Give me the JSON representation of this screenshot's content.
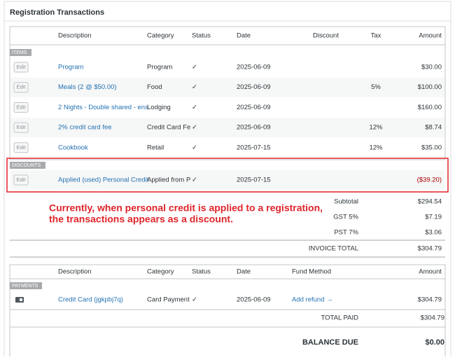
{
  "header": {
    "title": "Registration Transactions"
  },
  "items_table": {
    "columns": {
      "description": "Description",
      "category": "Category",
      "status": "Status",
      "date": "Date",
      "discount": "Discount",
      "tax": "Tax",
      "amount": "Amount"
    },
    "sections": [
      {
        "label": "ITEMS",
        "rows": [
          {
            "button": "Edit",
            "description": "Program",
            "category": "Program",
            "status": "✓",
            "date": "2025-06-09",
            "amount": "$30.00"
          },
          {
            "button": "Edit",
            "description": "Meals (2 @ $50.00)",
            "category": "Food",
            "status": "✓",
            "date": "2025-06-09",
            "tax": "5%",
            "amount": "$100.00"
          },
          {
            "button": "Edit",
            "description": "2 Nights - Double shared - ens",
            "category": "Lodging",
            "status": "✓",
            "date": "2025-06-09",
            "amount": "$160.00"
          },
          {
            "button": "Edit",
            "description": "2% credit card fee",
            "category": "Credit Card Fe",
            "status": "✓",
            "date": "2025-06-09",
            "tax": "12%",
            "amount": "$8.74"
          },
          {
            "button": "Edit",
            "description": "Cookbook",
            "category": "Retail",
            "status": "✓",
            "date": "2025-07-15",
            "tax": "12%",
            "amount": "$35.00"
          }
        ]
      },
      {
        "label": "DISCOUNTS",
        "rows": [
          {
            "button": "Edit",
            "description": "Applied (used) Personal Credit",
            "category": "Applied from P",
            "status": "✓",
            "date": "2025-07-15",
            "amount": "($39.20)"
          }
        ]
      }
    ]
  },
  "annotation": {
    "lines": [
      "Currently, when personal credit is applied to a registration,",
      "the transactions appears as a discount."
    ]
  },
  "totals": [
    {
      "label": "Subtotal",
      "value": "$294.54"
    },
    {
      "label": "GST 5%",
      "value": "$7.19"
    },
    {
      "label": "PST 7%",
      "value": "$3.06"
    },
    {
      "label": "INVOICE TOTAL",
      "value": "$304.79"
    }
  ],
  "payments_table": {
    "columns": {
      "description": "Description",
      "category": "Category",
      "status": "Status",
      "date": "Date",
      "fund_method": "Fund Method",
      "amount": "Amount"
    },
    "label": "PAYMENTS",
    "rows": [
      {
        "description": "Credit Card (jgkpbj7q)",
        "category": "Card Payment",
        "status": "✓",
        "date": "2025-06-09",
        "fund_method": "Add refund →",
        "amount": "$304.79"
      }
    ],
    "totals": [
      {
        "label": "TOTAL PAID",
        "value": "$304.79"
      },
      {
        "label": "BALANCE DUE",
        "value": "$0.00"
      }
    ]
  }
}
